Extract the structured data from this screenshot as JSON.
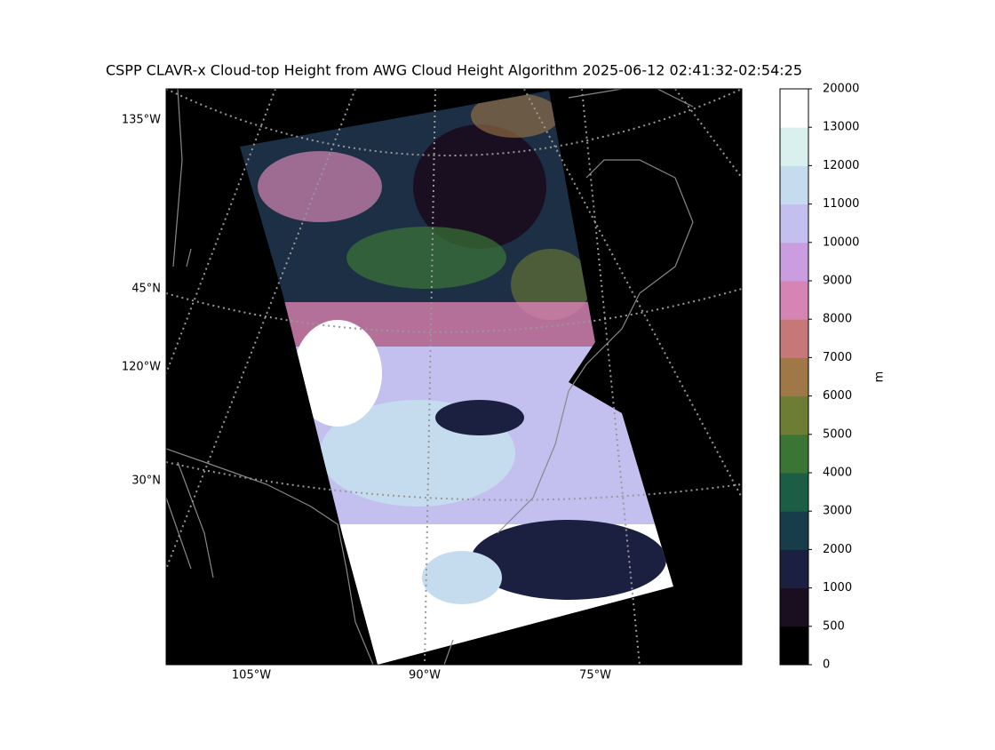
{
  "title": "CSPP CLAVR-x Cloud-top Height from AWG Cloud Height Algorithm 2025-06-12 02:41:32-02:54:25",
  "map_labels": {
    "left": [
      "135°W",
      "45°N",
      "120°W",
      "30°N"
    ],
    "bottom": [
      "105°W",
      "90°W",
      "75°W"
    ]
  },
  "colorbar": {
    "unit": "m",
    "levels": [
      0,
      500,
      1000,
      2000,
      3000,
      4000,
      5000,
      6000,
      7000,
      8000,
      9000,
      10000,
      11000,
      12000,
      13000,
      20000
    ],
    "colors": [
      "#000000",
      "#1a0f20",
      "#1c2040",
      "#183d4a",
      "#1b5e45",
      "#3a7536",
      "#6e7d34",
      "#a07848",
      "#c67878",
      "#d584b4",
      "#c99ddf",
      "#c3c0ef",
      "#c5dcef",
      "#d9f0ee",
      "#ffffff"
    ]
  }
}
